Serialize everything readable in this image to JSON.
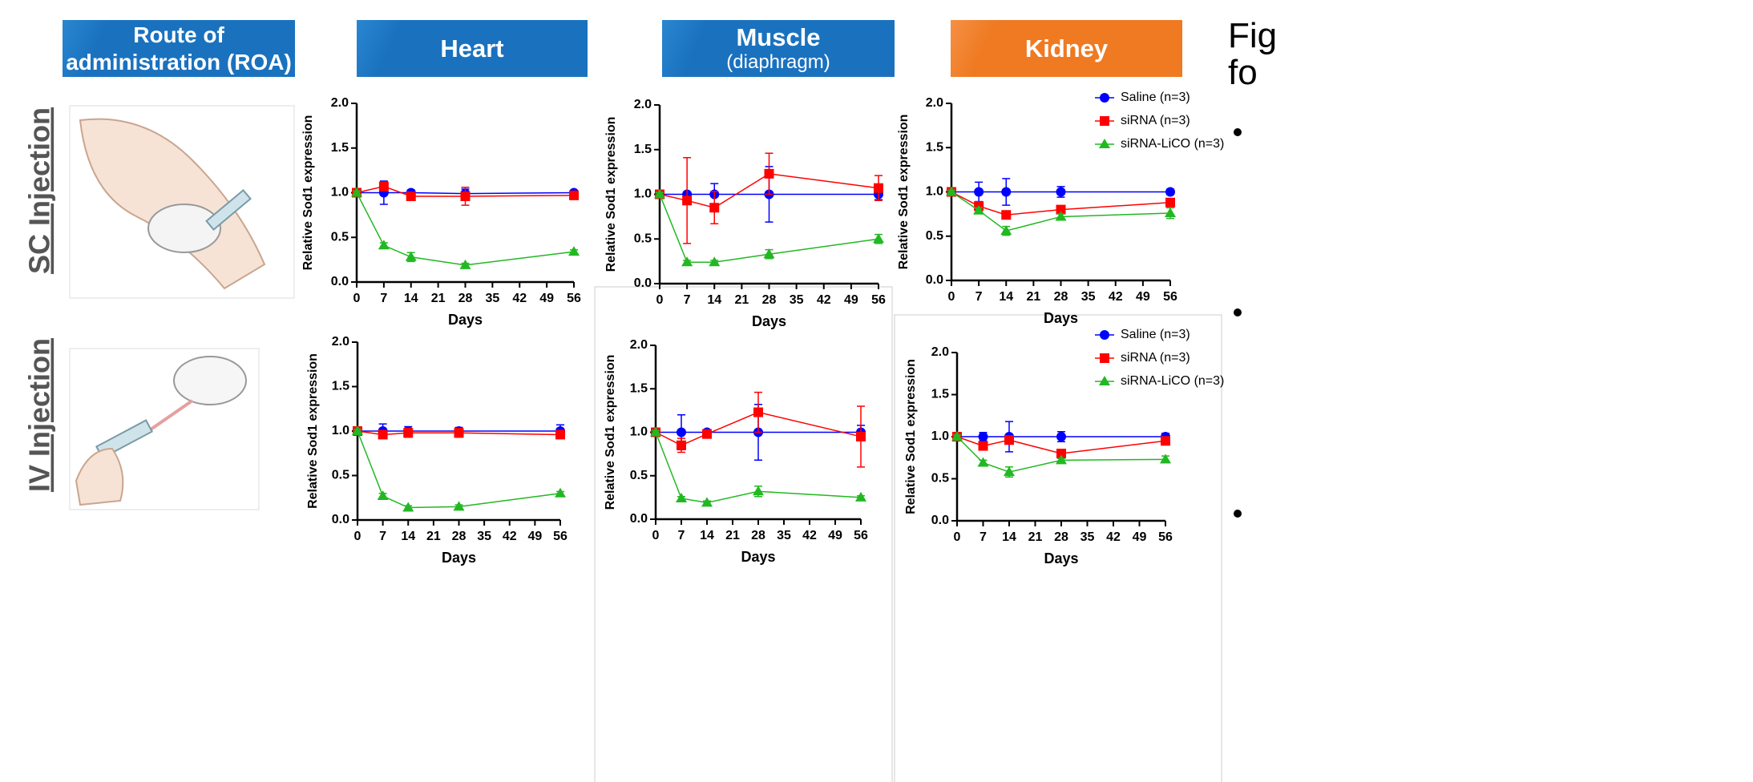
{
  "columns": [
    {
      "title": "Route of administration (ROA)"
    },
    {
      "title": "Heart"
    },
    {
      "title": "Muscle",
      "subtitle": "(diaphragm)"
    },
    {
      "title": "Kidney"
    }
  ],
  "rows": [
    "SC Injection",
    "IV Injection"
  ],
  "side_text": [
    "Fig",
    "fo"
  ],
  "chart_data": [
    {
      "type": "line",
      "xlabel": "Days",
      "ylabel": "Relative Sod1 expression",
      "x": [
        0,
        7,
        14,
        28,
        56
      ],
      "xlim": [
        0,
        56
      ],
      "xticks": [
        0,
        7,
        14,
        21,
        28,
        35,
        42,
        49,
        56
      ],
      "ylim": [
        0,
        2
      ],
      "yticks": [
        {
          "value": 0,
          "label": "0.0"
        },
        0.5,
        {
          "value": 1,
          "label": "1.0"
        },
        1.5,
        {
          "value": 2,
          "label": "2.0"
        }
      ],
      "series": [
        {
          "color": "#0000ff",
          "marker": "circle",
          "values": [
            1,
            1,
            1,
            0.99,
            1
          ],
          "errors": [
            0.02,
            0.13,
            0.03,
            0.05,
            0.02
          ]
        },
        {
          "color": "#ff0000",
          "marker": "square",
          "values": [
            1,
            1.07,
            0.96,
            0.96,
            0.97
          ],
          "errors": [
            0.02,
            0.05,
            0.04,
            0.1,
            0.03
          ]
        },
        {
          "color": "#22b822",
          "marker": "triangle",
          "values": [
            1,
            0.41,
            0.28,
            0.19,
            0.34
          ],
          "errors": [
            0.02,
            0.03,
            0.05,
            0.02,
            0.02
          ]
        }
      ]
    },
    {
      "type": "line",
      "xlabel": "Days",
      "ylabel": "Relative Sod1 expression",
      "x": [
        0,
        7,
        14,
        28,
        56
      ],
      "xlim": [
        0,
        56
      ],
      "xticks": [
        0,
        7,
        14,
        21,
        28,
        35,
        42,
        49,
        56
      ],
      "ylim": [
        0,
        2
      ],
      "yticks": [
        {
          "value": 0,
          "label": "0.0"
        },
        0.5,
        {
          "value": 1,
          "label": "1.0"
        },
        1.5,
        {
          "value": 2,
          "label": "2.0"
        }
      ],
      "series": [
        {
          "color": "#0000ff",
          "marker": "circle",
          "values": [
            1,
            1,
            1,
            1,
            1
          ],
          "errors": [
            0.02,
            0.02,
            0.12,
            0.31,
            0.06
          ]
        },
        {
          "color": "#ff0000",
          "marker": "square",
          "values": [
            1,
            0.93,
            0.85,
            1.23,
            1.07
          ],
          "errors": [
            0.02,
            0.48,
            0.18,
            0.23,
            0.14
          ]
        },
        {
          "color": "#22b822",
          "marker": "triangle",
          "values": [
            1,
            0.24,
            0.24,
            0.33,
            0.5
          ],
          "errors": [
            0.02,
            0.02,
            0.02,
            0.05,
            0.05
          ]
        }
      ]
    },
    {
      "type": "line",
      "xlabel": "Days",
      "ylabel": "Relative Sod1 expression",
      "x": [
        0,
        7,
        14,
        28,
        56
      ],
      "xlim": [
        0,
        56
      ],
      "xticks": [
        0,
        7,
        14,
        21,
        28,
        35,
        42,
        49,
        56
      ],
      "ylim": [
        0,
        2
      ],
      "yticks": [
        {
          "value": 0,
          "label": "0.0"
        },
        0.5,
        {
          "value": 1,
          "label": "1.0"
        },
        1.5,
        {
          "value": 2,
          "label": "2.0"
        }
      ],
      "legend": "top-right",
      "series": [
        {
          "name": "Saline (n=3)",
          "color": "#0000ff",
          "marker": "circle",
          "values": [
            1,
            1,
            1,
            1,
            1
          ],
          "errors": [
            0.02,
            0.11,
            0.15,
            0.06,
            0.03
          ]
        },
        {
          "name": "siRNA (n=3)",
          "color": "#ff0000",
          "marker": "square",
          "values": [
            1,
            0.84,
            0.74,
            0.8,
            0.88
          ],
          "errors": [
            0.02,
            0.05,
            0.03,
            0.04,
            0.04
          ]
        },
        {
          "name": "siRNA-LiCO (n=3)",
          "color": "#22b822",
          "marker": "triangle",
          "values": [
            1,
            0.79,
            0.56,
            0.72,
            0.76
          ],
          "errors": [
            0.02,
            0.03,
            0.05,
            0.03,
            0.06
          ]
        }
      ]
    },
    {
      "type": "line",
      "xlabel": "Days",
      "ylabel": "Relative Sod1 expression",
      "x": [
        0,
        7,
        14,
        28,
        56
      ],
      "xlim": [
        0,
        56
      ],
      "xticks": [
        0,
        7,
        14,
        21,
        28,
        35,
        42,
        49,
        56
      ],
      "ylim": [
        0,
        2
      ],
      "yticks": [
        {
          "value": 0,
          "label": "0.0"
        },
        0.5,
        {
          "value": 1,
          "label": "1.0"
        },
        1.5,
        {
          "value": 2,
          "label": "2.0"
        }
      ],
      "series": [
        {
          "color": "#0000ff",
          "marker": "circle",
          "values": [
            1,
            1,
            1,
            1,
            1
          ],
          "errors": [
            0.02,
            0.08,
            0.05,
            0.04,
            0.07
          ]
        },
        {
          "color": "#ff0000",
          "marker": "square",
          "values": [
            1,
            0.96,
            0.98,
            0.98,
            0.96
          ],
          "errors": [
            0.02,
            0.04,
            0.05,
            0.05,
            0.03
          ]
        },
        {
          "color": "#22b822",
          "marker": "triangle",
          "values": [
            1,
            0.27,
            0.14,
            0.15,
            0.3
          ],
          "errors": [
            0.02,
            0.03,
            0.02,
            0.02,
            0.02
          ]
        }
      ]
    },
    {
      "type": "line",
      "xlabel": "Days",
      "ylabel": "Relative Sod1 expression",
      "x": [
        0,
        7,
        14,
        28,
        56
      ],
      "xlim": [
        0,
        56
      ],
      "xticks": [
        0,
        7,
        14,
        21,
        28,
        35,
        42,
        49,
        56
      ],
      "ylim": [
        0,
        2
      ],
      "yticks": [
        {
          "value": 0,
          "label": "0.0"
        },
        0.5,
        {
          "value": 1,
          "label": "1.0"
        },
        1.5,
        {
          "value": 2,
          "label": "2.0"
        }
      ],
      "series": [
        {
          "color": "#0000ff",
          "marker": "circle",
          "values": [
            1,
            1,
            1,
            1,
            1
          ],
          "errors": [
            0.02,
            0.2,
            0.03,
            0.32,
            0.08
          ]
        },
        {
          "color": "#ff0000",
          "marker": "square",
          "values": [
            1,
            0.85,
            0.98,
            1.23,
            0.95
          ],
          "errors": [
            0.02,
            0.08,
            0.04,
            0.23,
            0.35
          ]
        },
        {
          "color": "#22b822",
          "marker": "triangle",
          "values": [
            1,
            0.24,
            0.19,
            0.32,
            0.25
          ],
          "errors": [
            0.02,
            0.02,
            0.02,
            0.06,
            0.02
          ]
        }
      ]
    },
    {
      "type": "line",
      "xlabel": "Days",
      "ylabel": "Relative Sod1 expression",
      "x": [
        0,
        7,
        14,
        28,
        56
      ],
      "xlim": [
        0,
        56
      ],
      "xticks": [
        0,
        7,
        14,
        21,
        28,
        35,
        42,
        49,
        56
      ],
      "ylim": [
        0,
        2
      ],
      "yticks": [
        {
          "value": 0,
          "label": "0.0"
        },
        0.5,
        {
          "value": 1,
          "label": "1.0"
        },
        1.5,
        {
          "value": 2,
          "label": "2.0"
        }
      ],
      "legend": "top-right",
      "series": [
        {
          "name": "Saline (n=3)",
          "color": "#0000ff",
          "marker": "circle",
          "values": [
            1,
            1,
            1,
            1,
            1
          ],
          "errors": [
            0.02,
            0.05,
            0.18,
            0.06,
            0.04
          ]
        },
        {
          "name": "siRNA (n=3)",
          "color": "#ff0000",
          "marker": "square",
          "values": [
            1,
            0.89,
            0.96,
            0.8,
            0.95
          ],
          "errors": [
            0.02,
            0.04,
            0.04,
            0.05,
            0.03
          ]
        },
        {
          "name": "siRNA-LiCO (n=3)",
          "color": "#22b822",
          "marker": "triangle",
          "values": [
            1,
            0.69,
            0.58,
            0.72,
            0.73
          ],
          "errors": [
            0.02,
            0.03,
            0.06,
            0.02,
            0.04
          ]
        }
      ]
    }
  ]
}
